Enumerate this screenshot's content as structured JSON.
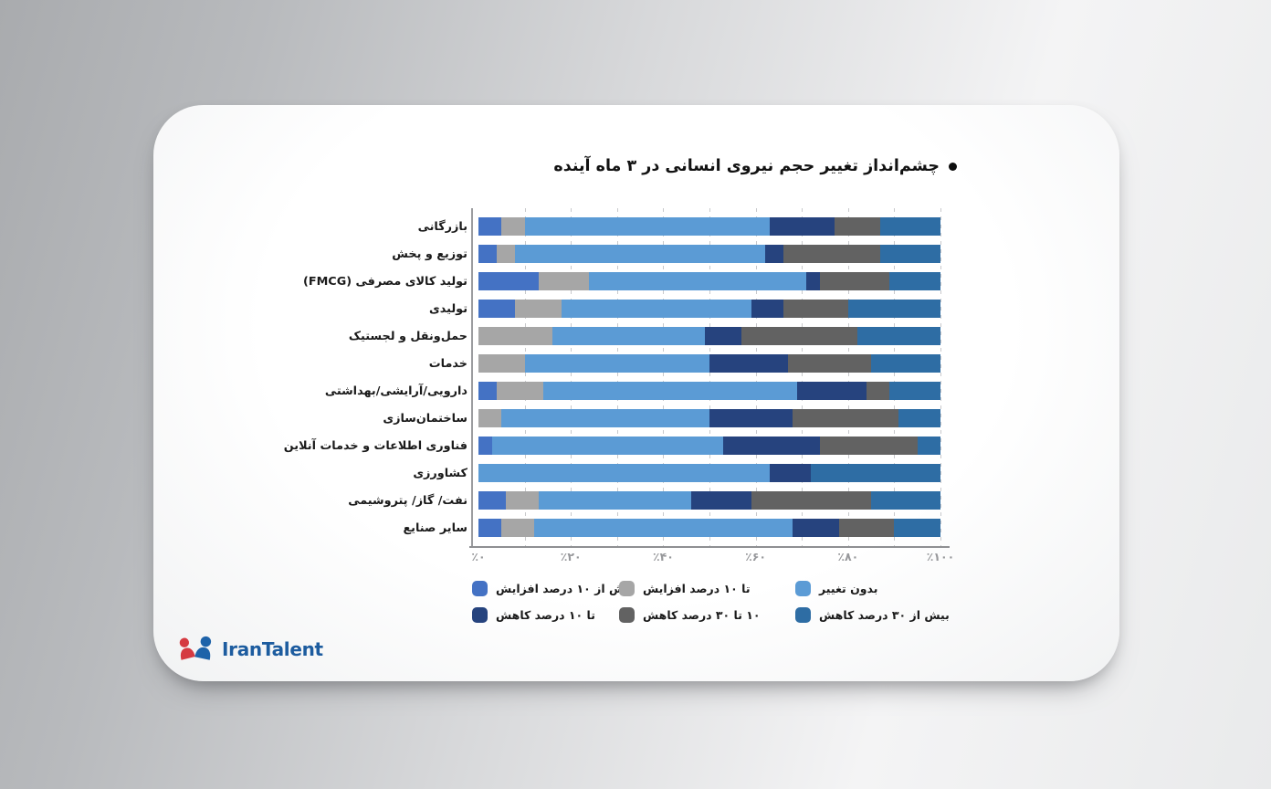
{
  "title": {
    "bullet": "●",
    "text": "چشم‌انداز تغییر حجم نیروی انسانی در ۳ ماه آینده"
  },
  "brand": {
    "name": "IranTalent",
    "icon_red": "#d53a41",
    "icon_blue": "#1e63a9",
    "text_color": "#1d5c9f"
  },
  "chart_data": {
    "type": "bar",
    "orientation": "horizontal",
    "stacked": true,
    "rtl": true,
    "title": "چشم‌انداز تغییر حجم نیروی انسانی در ۳ ماه آینده",
    "categories": [
      "بازرگانی",
      "توزیع و پخش",
      "تولید کالای مصرفی (FMCG)",
      "تولیدی",
      "حمل‌ونقل و لجستیک",
      "خدمات",
      "دارویی/آرایشی/بهداشتی",
      "ساختمان‌سازی",
      "فناوری اطلاعات و خدمات آنلاین",
      "کشاورزی",
      "نفت/ گاز/ پتروشیمی",
      "سایر صنایع"
    ],
    "series": [
      {
        "name": "بیش از ۱۰ درصد افزایش",
        "color": "#4472c4",
        "values": [
          5,
          4,
          13,
          8,
          0,
          0,
          4,
          0,
          3,
          0,
          6,
          5
        ]
      },
      {
        "name": "تا ۱۰ درصد افزایش",
        "color": "#a6a6a6",
        "values": [
          5,
          4,
          11,
          10,
          16,
          10,
          10,
          5,
          0,
          0,
          7,
          7
        ]
      },
      {
        "name": "بدون تغییر",
        "color": "#5b9bd5",
        "values": [
          53,
          54,
          47,
          41,
          33,
          40,
          55,
          45,
          50,
          63,
          33,
          56
        ]
      },
      {
        "name": "تا ۱۰ درصد کاهش",
        "color": "#26437e",
        "values": [
          14,
          4,
          3,
          7,
          8,
          17,
          15,
          18,
          21,
          9,
          13,
          10
        ]
      },
      {
        "name": "۱۰ تا ۳۰ درصد کاهش",
        "color": "#626262",
        "values": [
          10,
          21,
          15,
          14,
          25,
          18,
          5,
          23,
          21,
          0,
          26,
          12
        ]
      },
      {
        "name": "بیش از ۳۰ درصد کاهش",
        "color": "#2e6da4",
        "values": [
          13,
          13,
          11,
          20,
          18,
          15,
          11,
          9,
          5,
          28,
          15,
          10
        ]
      }
    ],
    "x_axis": {
      "min": 0,
      "max": 100,
      "tick_step": 20,
      "grid_step": 10,
      "grid_style": "dashed",
      "ticks": [
        "٪۰",
        "٪۲۰",
        "٪۴۰",
        "٪۶۰",
        "٪۸۰",
        "٪۱۰۰"
      ]
    },
    "legend": {
      "position": "bottom",
      "rows": [
        [
          0,
          1,
          2
        ],
        [
          3,
          4,
          5
        ]
      ]
    }
  }
}
